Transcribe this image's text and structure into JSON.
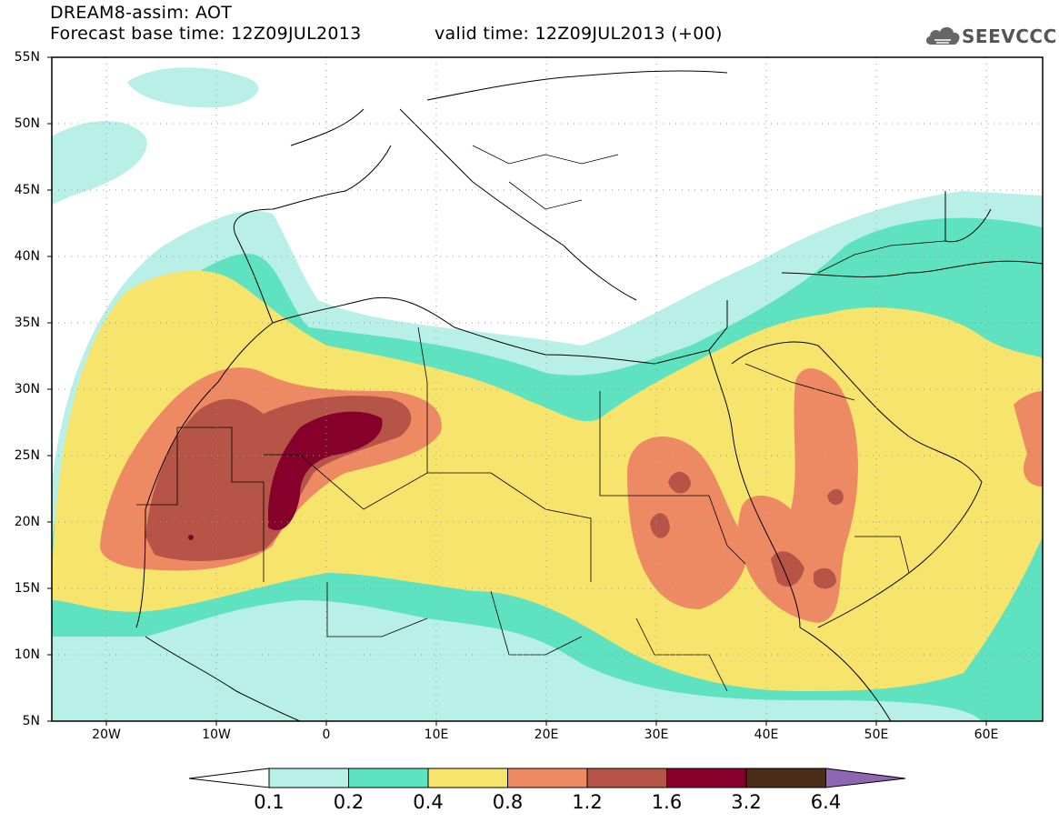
{
  "header": {
    "title_line1": "DREAM8-assim: AOT",
    "title_line2": "Forecast base time: 12Z09JUL2013",
    "valid_time": "valid time: 12Z09JUL2013 (+00)",
    "logo_text": "SEEVCCC"
  },
  "map": {
    "lon_range": [
      -25,
      65
    ],
    "lat_range": [
      5,
      55
    ],
    "lat_labels": [
      "55N",
      "50N",
      "45N",
      "40N",
      "35N",
      "30N",
      "25N",
      "20N",
      "15N",
      "10N",
      "5N"
    ],
    "lon_labels": [
      "20W",
      "10W",
      "0",
      "10E",
      "20E",
      "30E",
      "40E",
      "50E",
      "60E"
    ],
    "grid": "dotted"
  },
  "colorbar": {
    "labels": [
      "0.1",
      "0.2",
      "0.4",
      "0.8",
      "1.2",
      "1.6",
      "3.2",
      "6.4"
    ],
    "colors": [
      "#ffffff",
      "#b8efe6",
      "#5ee2c0",
      "#f7e46c",
      "#ed8a63",
      "#b65547",
      "#86002c",
      "#4a2c18",
      "#8f66b4"
    ]
  }
}
